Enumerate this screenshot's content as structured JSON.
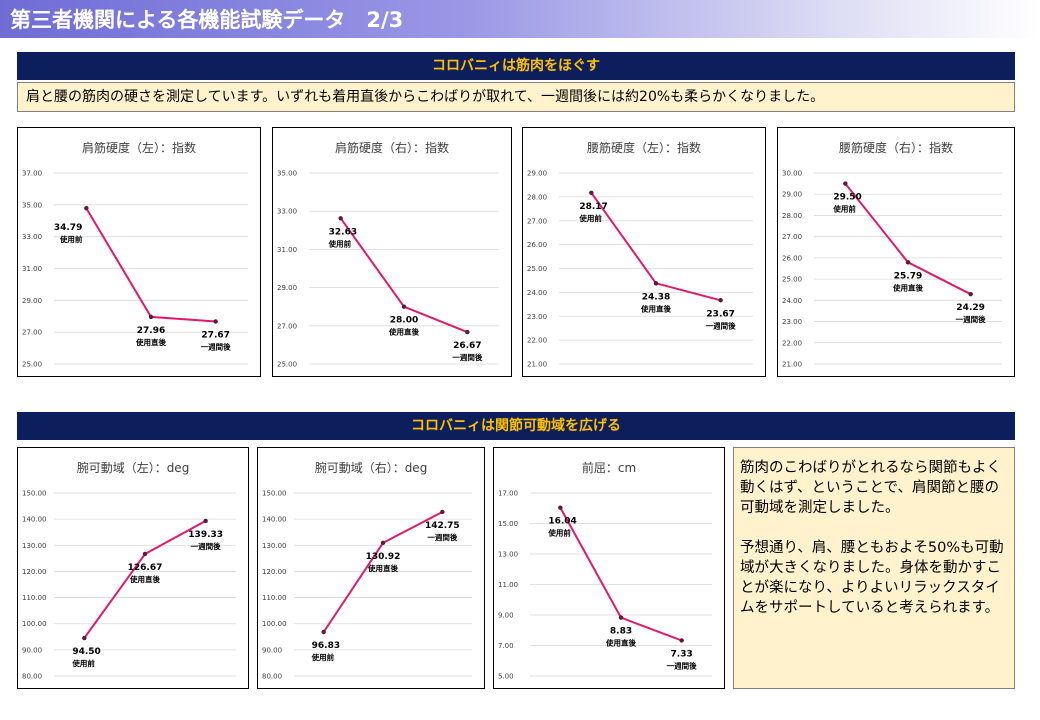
{
  "header": {
    "title": "第三者機関による各機能試験データ　2/3"
  },
  "section1": {
    "heading": "コロバニィは筋肉をほぐす",
    "intro": "肩と腰の筋肉の硬さを測定しています。いずれも着用直後からこわばりが取れて、一週間後には約20%も柔らかくなりました。"
  },
  "section2": {
    "heading": "コロバニィは関節可動域を広げる",
    "note_p1": "筋肉のこわばりがとれるなら関節もよく動くはず、ということで、肩関節と腰の可動域を測定しました。",
    "note_p2": "予想通り、肩、腰ともおよそ50%も可動域が大きくなりました。身体を動かすことが楽になり、よりよいリラックスタイムをサポートしていると考えられます。"
  },
  "colors": {
    "line": "#e0196e",
    "marker": "#5a1a3a",
    "section_bg": "#0c1e5b",
    "section_text": "#ffc000",
    "box_bg": "#fff2cc",
    "grid": "#d9d9d9"
  },
  "chart_data": [
    {
      "type": "line",
      "title": "肩筋硬度（左）：指数",
      "categories": [
        "使用前",
        "使用直後",
        "一週間後"
      ],
      "values": [
        34.79,
        27.96,
        27.67
      ],
      "value_labels": [
        "34.79",
        "27.96",
        "27.67"
      ],
      "ylim": [
        25,
        37
      ],
      "ticks": [
        "25.00",
        "27.00",
        "29.00",
        "31.00",
        "33.00",
        "35.00",
        "37.00"
      ],
      "label_pos": [
        "left",
        "below",
        "below"
      ],
      "grid": true
    },
    {
      "type": "line",
      "title": "肩筋硬度（右）：指数",
      "categories": [
        "使用前",
        "使用直後",
        "一週間後"
      ],
      "values": [
        32.63,
        28.0,
        26.67
      ],
      "value_labels": [
        "32.63",
        "28.00",
        "26.67"
      ],
      "ylim": [
        25,
        35
      ],
      "ticks": [
        "25.00",
        "27.00",
        "29.00",
        "31.00",
        "33.00",
        "35.00"
      ],
      "label_pos": [
        "below",
        "below",
        "below"
      ],
      "grid": true
    },
    {
      "type": "line",
      "title": "腰筋硬度（左）：指数",
      "categories": [
        "使用前",
        "使用直後",
        "一週間後"
      ],
      "values": [
        28.17,
        24.38,
        23.67
      ],
      "value_labels": [
        "28.17",
        "24.38",
        "23.67"
      ],
      "ylim": [
        21,
        29
      ],
      "ticks": [
        "21.00",
        "22.00",
        "23.00",
        "24.00",
        "25.00",
        "26.00",
        "27.00",
        "28.00",
        "29.00"
      ],
      "label_pos": [
        "below",
        "below",
        "below"
      ],
      "grid": true
    },
    {
      "type": "line",
      "title": "腰筋硬度（右）：指数",
      "categories": [
        "使用前",
        "使用直後",
        "一週間後"
      ],
      "values": [
        29.5,
        25.79,
        24.29
      ],
      "value_labels": [
        "29.50",
        "25.79",
        "24.29"
      ],
      "ylim": [
        21,
        30
      ],
      "ticks": [
        "21.00",
        "22.00",
        "23.00",
        "24.00",
        "25.00",
        "26.00",
        "27.00",
        "28.00",
        "29.00",
        "30.00"
      ],
      "label_pos": [
        "below",
        "below",
        "below"
      ],
      "grid": true
    },
    {
      "type": "line",
      "title": "腕可動域（左）：deg",
      "categories": [
        "使用前",
        "使用直後",
        "一週間後"
      ],
      "values": [
        94.5,
        126.67,
        139.33
      ],
      "value_labels": [
        "94.50",
        "126.67",
        "139.33"
      ],
      "ylim": [
        80,
        150
      ],
      "ticks": [
        "80.00",
        "90.00",
        "100.00",
        "110.00",
        "120.00",
        "130.00",
        "140.00",
        "150.00"
      ],
      "label_pos": [
        "below",
        "below",
        "below"
      ],
      "grid": true
    },
    {
      "type": "line",
      "title": "腕可動域（右）：deg",
      "categories": [
        "使用前",
        "使用直後",
        "一週間後"
      ],
      "values": [
        96.83,
        130.92,
        142.75
      ],
      "value_labels": [
        "96.83",
        "130.92",
        "142.75"
      ],
      "ylim": [
        80,
        150
      ],
      "ticks": [
        "80.00",
        "90.00",
        "100.00",
        "110.00",
        "120.00",
        "130.00",
        "140.00",
        "150.00"
      ],
      "label_pos": [
        "below",
        "below",
        "below"
      ],
      "grid": true
    },
    {
      "type": "line",
      "title": "前屈：cm",
      "categories": [
        "使用前",
        "使用直後",
        "一週間後"
      ],
      "values": [
        16.04,
        8.83,
        7.33
      ],
      "value_labels": [
        "16.04",
        "8.83",
        "7.33"
      ],
      "ylim": [
        5,
        17
      ],
      "ticks": [
        "5.00",
        "7.00",
        "9.00",
        "11.00",
        "13.00",
        "15.00",
        "17.00"
      ],
      "label_pos": [
        "below",
        "below",
        "below"
      ],
      "grid": true
    }
  ]
}
